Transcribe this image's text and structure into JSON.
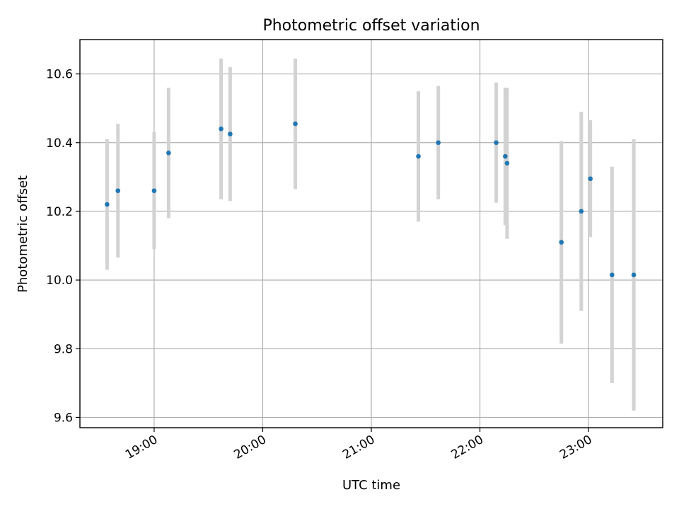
{
  "chart_data": {
    "type": "scatter",
    "title": "Photometric offset variation",
    "xlabel": "UTC time",
    "ylabel": "Photometric offset",
    "x_unit": "hours UTC",
    "xlim": [
      "18:19",
      "23:41"
    ],
    "ylim": [
      9.57,
      10.7
    ],
    "x_ticks": [
      {
        "label": "19:00",
        "value": "19:00"
      },
      {
        "label": "20:00",
        "value": "20:00"
      },
      {
        "label": "21:00",
        "value": "21:00"
      },
      {
        "label": "22:00",
        "value": "22:00"
      },
      {
        "label": "23:00",
        "value": "23:00"
      }
    ],
    "y_ticks": [
      {
        "label": "9.6",
        "value": 9.6
      },
      {
        "label": "9.8",
        "value": 9.8
      },
      {
        "label": "10.0",
        "value": 10.0
      },
      {
        "label": "10.2",
        "value": 10.2
      },
      {
        "label": "10.4",
        "value": 10.4
      },
      {
        "label": "10.6",
        "value": 10.6
      }
    ],
    "grid": true,
    "marker_color": "#1f77b4",
    "errorbar_color": "#d3d3d3",
    "points": [
      {
        "time": "18:34",
        "y": 10.22,
        "err": 0.19
      },
      {
        "time": "18:40",
        "y": 10.26,
        "err": 0.195
      },
      {
        "time": "19:00",
        "y": 10.26,
        "err": 0.17
      },
      {
        "time": "19:08",
        "y": 10.37,
        "err": 0.19
      },
      {
        "time": "19:37",
        "y": 10.44,
        "err": 0.205
      },
      {
        "time": "19:42",
        "y": 10.425,
        "err": 0.195
      },
      {
        "time": "20:18",
        "y": 10.455,
        "err": 0.19
      },
      {
        "time": "21:26",
        "y": 10.36,
        "err": 0.19
      },
      {
        "time": "21:37",
        "y": 10.4,
        "err": 0.165
      },
      {
        "time": "22:09",
        "y": 10.4,
        "err": 0.175
      },
      {
        "time": "22:14",
        "y": 10.36,
        "err": 0.2
      },
      {
        "time": "22:15",
        "y": 10.34,
        "err": 0.22
      },
      {
        "time": "22:45",
        "y": 10.11,
        "err": 0.295
      },
      {
        "time": "22:56",
        "y": 10.2,
        "err": 0.29
      },
      {
        "time": "23:01",
        "y": 10.295,
        "err": 0.17
      },
      {
        "time": "23:13",
        "y": 10.015,
        "err": 0.315
      },
      {
        "time": "23:25",
        "y": 10.015,
        "err": 0.395
      }
    ]
  }
}
